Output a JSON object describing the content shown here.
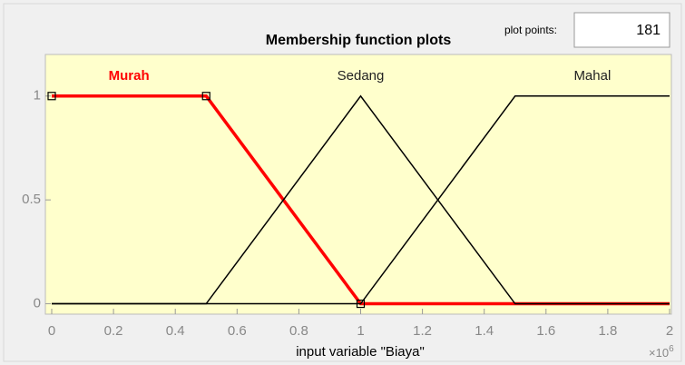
{
  "chart_data": {
    "type": "line",
    "title": "Membership function plots",
    "plot_points_label": "plot points:",
    "plot_points_value": "181",
    "x_label": "input variable \"Biaya\"",
    "x_multiplier": {
      "base": "×10",
      "exponent": "6"
    },
    "xlim": [
      0,
      2
    ],
    "ylim": [
      -0.05,
      1.2
    ],
    "xticks": [
      0,
      0.2,
      0.4,
      0.6,
      0.8,
      1,
      1.2,
      1.4,
      1.6,
      1.8,
      2
    ],
    "yticks": [
      0,
      0.5,
      1
    ],
    "grid": false,
    "series": [
      {
        "name": "Murah",
        "color": "#ff0000",
        "x": [
          0,
          0.5,
          1,
          2
        ],
        "values": [
          1,
          1,
          0,
          0
        ]
      },
      {
        "name": "Sedang",
        "color": "#000000",
        "x": [
          0,
          0.5,
          1,
          1.5,
          2
        ],
        "values": [
          0,
          0,
          1,
          0,
          0
        ]
      },
      {
        "name": "Mahal",
        "color": "#000000",
        "x": [
          0,
          1,
          1.5,
          2
        ],
        "values": [
          0,
          0,
          1,
          1
        ]
      }
    ]
  }
}
